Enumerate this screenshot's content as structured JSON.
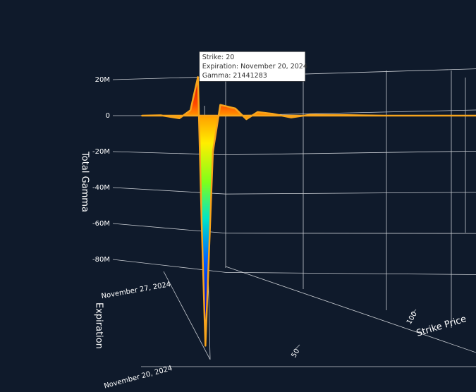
{
  "chart_data": {
    "type": "surface",
    "z_label": "Total Gamma",
    "x_label": "Strike Price",
    "y_label": "Expiration",
    "x": [
      5,
      10,
      15,
      18,
      20,
      21,
      22,
      24,
      26,
      30,
      33,
      36,
      40,
      45,
      50,
      60,
      70,
      80,
      100,
      120,
      140
    ],
    "values": [
      0,
      200000,
      -1500000,
      3000000,
      21441283,
      -60000000,
      -128000000,
      -20000000,
      6000000,
      4000000,
      -2000000,
      2000000,
      1000000,
      -1000000,
      500000,
      300000,
      0,
      0,
      0,
      0,
      0
    ],
    "xlim": [
      0,
      140
    ],
    "xticks": [
      50,
      100
    ],
    "zlim": [
      -130000000,
      25000000
    ],
    "zticks": [
      {
        "value": 20000000,
        "label": "20M"
      },
      0,
      {
        "value": -20000000,
        "label": "-20M"
      },
      {
        "value": -40000000,
        "label": "-40M"
      },
      {
        "value": -60000000,
        "label": "-60M"
      },
      {
        "value": -80000000,
        "label": "-80M"
      }
    ],
    "y_categories": [
      "November 20, 2024",
      "November 27, 2024"
    ],
    "grid": true,
    "tooltip": [
      "Strike: 20",
      "Expiration: November 20, 2024",
      "Gamma: 21441283"
    ]
  }
}
